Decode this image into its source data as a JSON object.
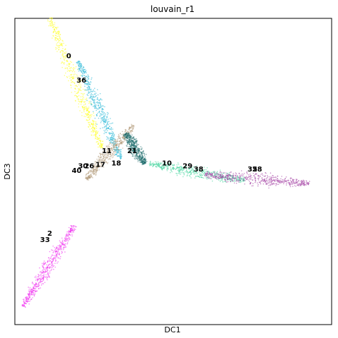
{
  "chart_data": {
    "type": "scatter",
    "title": "louvain_r1",
    "xlabel": "DC1",
    "ylabel": "DC3",
    "grid": false,
    "legend": "on data",
    "ticks": "none",
    "branches": [
      {
        "name": "top",
        "color": "#ffff1a",
        "from": [
          -0.78,
          1.0
        ],
        "to": [
          -0.45,
          0.15
        ]
      },
      {
        "name": "top-cyan",
        "color": "#1fb5d6",
        "from": [
          -0.6,
          0.72
        ],
        "to": [
          -0.33,
          0.08
        ]
      },
      {
        "name": "bottom",
        "color": "#ee22ee",
        "from": [
          -0.62,
          -0.35
        ],
        "to": [
          -0.95,
          -0.88
        ]
      },
      {
        "name": "right-green",
        "color": "#3fd39a",
        "from": [
          -0.15,
          0.05
        ],
        "to": [
          0.45,
          -0.06
        ]
      },
      {
        "name": "right-purple",
        "color": "#a03aa0",
        "from": [
          0.2,
          -0.02
        ],
        "to": [
          0.86,
          -0.08
        ]
      },
      {
        "name": "center-tan",
        "color": "#b29a7a",
        "from": [
          -0.55,
          -0.05
        ],
        "to": [
          -0.25,
          0.3
        ]
      },
      {
        "name": "center-teal",
        "color": "#1a6a6a",
        "from": [
          -0.3,
          0.25
        ],
        "to": [
          -0.18,
          0.05
        ]
      }
    ],
    "cluster_labels": [
      {
        "text": "0",
        "x": -0.66,
        "y": 0.74
      },
      {
        "text": "36",
        "x": -0.58,
        "y": 0.58
      },
      {
        "text": "11",
        "x": -0.42,
        "y": 0.12
      },
      {
        "text": "21",
        "x": -0.26,
        "y": 0.12
      },
      {
        "text": "17",
        "x": -0.46,
        "y": 0.03
      },
      {
        "text": "26",
        "x": -0.53,
        "y": 0.02
      },
      {
        "text": "30",
        "x": -0.57,
        "y": 0.02
      },
      {
        "text": "40",
        "x": -0.61,
        "y": -0.01
      },
      {
        "text": "18",
        "x": -0.36,
        "y": 0.04
      },
      {
        "text": "10",
        "x": -0.04,
        "y": 0.04
      },
      {
        "text": "29",
        "x": 0.09,
        "y": 0.02
      },
      {
        "text": "38",
        "x": 0.16,
        "y": 0.0
      },
      {
        "text": "35",
        "x": 0.5,
        "y": 0.0
      },
      {
        "text": "28",
        "x": 0.53,
        "y": 0.0
      },
      {
        "text": "2",
        "x": -0.78,
        "y": -0.42
      },
      {
        "text": "33",
        "x": -0.81,
        "y": -0.46
      }
    ]
  }
}
